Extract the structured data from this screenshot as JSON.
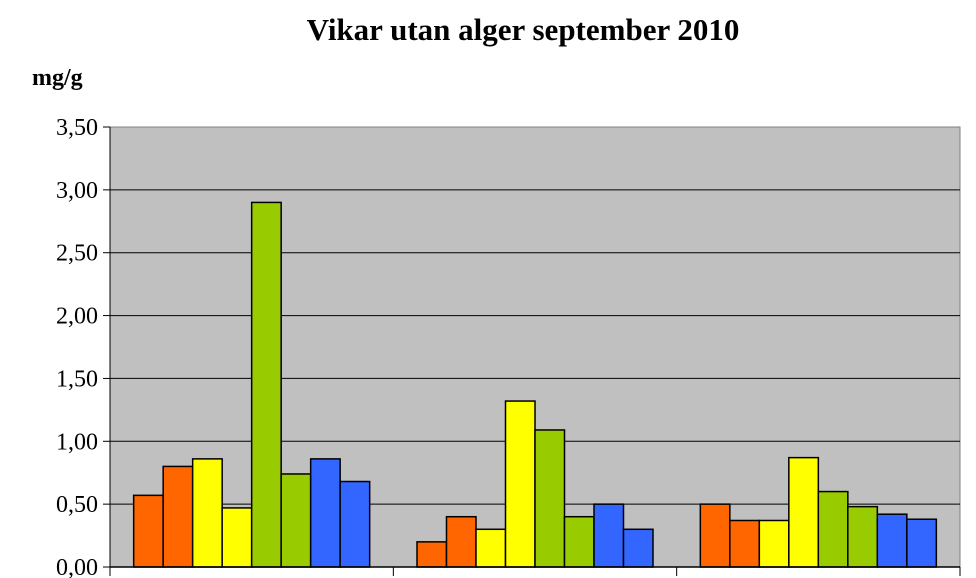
{
  "chart_data": {
    "type": "bar",
    "title": "Vikar utan alger september 2010",
    "xlabel": "",
    "ylabel": "mg/g",
    "ylim": [
      0,
      3.5
    ],
    "yticks": [
      "0,00",
      "0,50",
      "1,00",
      "1,50",
      "2,00",
      "2,50",
      "3,00",
      "3,50"
    ],
    "grid": true,
    "legend": "none",
    "categories": [
      "",
      "",
      ""
    ],
    "series": [
      {
        "color": "#ff6600",
        "values": [
          0.57,
          0.2,
          0.5
        ]
      },
      {
        "color": "#ff6600",
        "values": [
          0.8,
          0.4,
          0.37
        ]
      },
      {
        "color": "#ffff00",
        "values": [
          0.86,
          0.3,
          0.37
        ]
      },
      {
        "color": "#ffff00",
        "values": [
          0.47,
          1.32,
          0.87
        ]
      },
      {
        "color": "#99cc00",
        "values": [
          2.9,
          1.09,
          0.6
        ]
      },
      {
        "color": "#99cc00",
        "values": [
          0.74,
          0.4,
          0.48
        ]
      },
      {
        "color": "#3366ff",
        "values": [
          0.86,
          0.5,
          0.42
        ]
      },
      {
        "color": "#3366ff",
        "values": [
          0.68,
          0.3,
          0.38
        ]
      }
    ],
    "plot_background": "#c0c0c0"
  }
}
